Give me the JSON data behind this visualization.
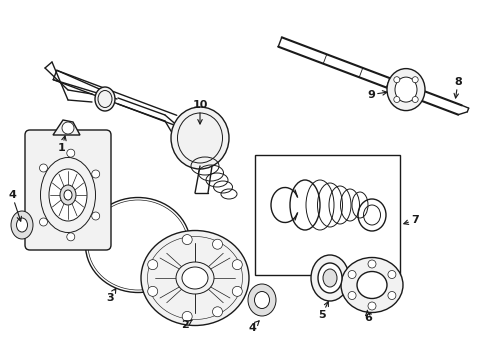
{
  "bg_color": "#ffffff",
  "line_color": "#1a1a1a",
  "fig_width": 4.9,
  "fig_height": 3.6,
  "dpi": 100,
  "lw_main": 1.0,
  "lw_thin": 0.7,
  "lw_thick": 1.5,
  "fill_light": "#f2f2f2",
  "fill_mid": "#e0e0e0",
  "fill_white": "#ffffff"
}
